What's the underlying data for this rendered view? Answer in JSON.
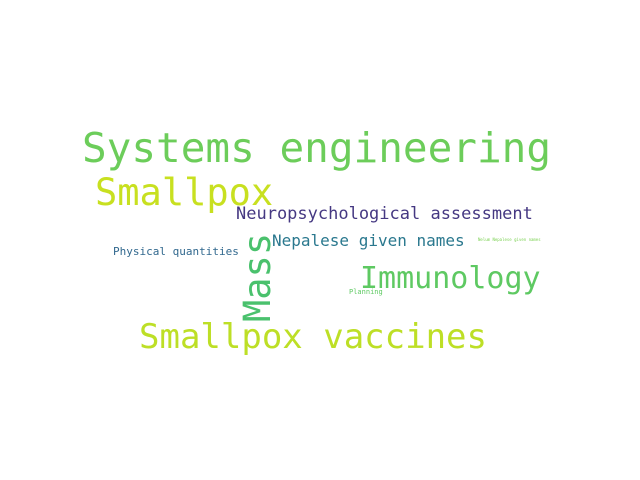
{
  "words": [
    {
      "id": "systems-engineering",
      "text": "Systems engineering",
      "color": "#6ccd5a"
    },
    {
      "id": "smallpox",
      "text": "Smallpox",
      "color": "#c8e020"
    },
    {
      "id": "neuropsychological-assessment",
      "text": "Neuropsychological assessment",
      "color": "#453882"
    },
    {
      "id": "mass",
      "text": "Mass",
      "color": "#4ac16d"
    },
    {
      "id": "nepalese-given-names",
      "text": "Nepalese given names",
      "color": "#2a788e"
    },
    {
      "id": "physical-quantities",
      "text": "Physical quantities",
      "color": "#31688e"
    },
    {
      "id": "immunology",
      "text": "Immunology",
      "color": "#5ec962"
    },
    {
      "id": "smallpox-vaccines",
      "text": "Smallpox vaccines",
      "color": "#bddf26"
    },
    {
      "id": "planning",
      "text": "Planning",
      "color": "#5ec962"
    },
    {
      "id": "tiny-term",
      "text": "Nelum Nepalese given names",
      "color": "#7ad151"
    }
  ]
}
